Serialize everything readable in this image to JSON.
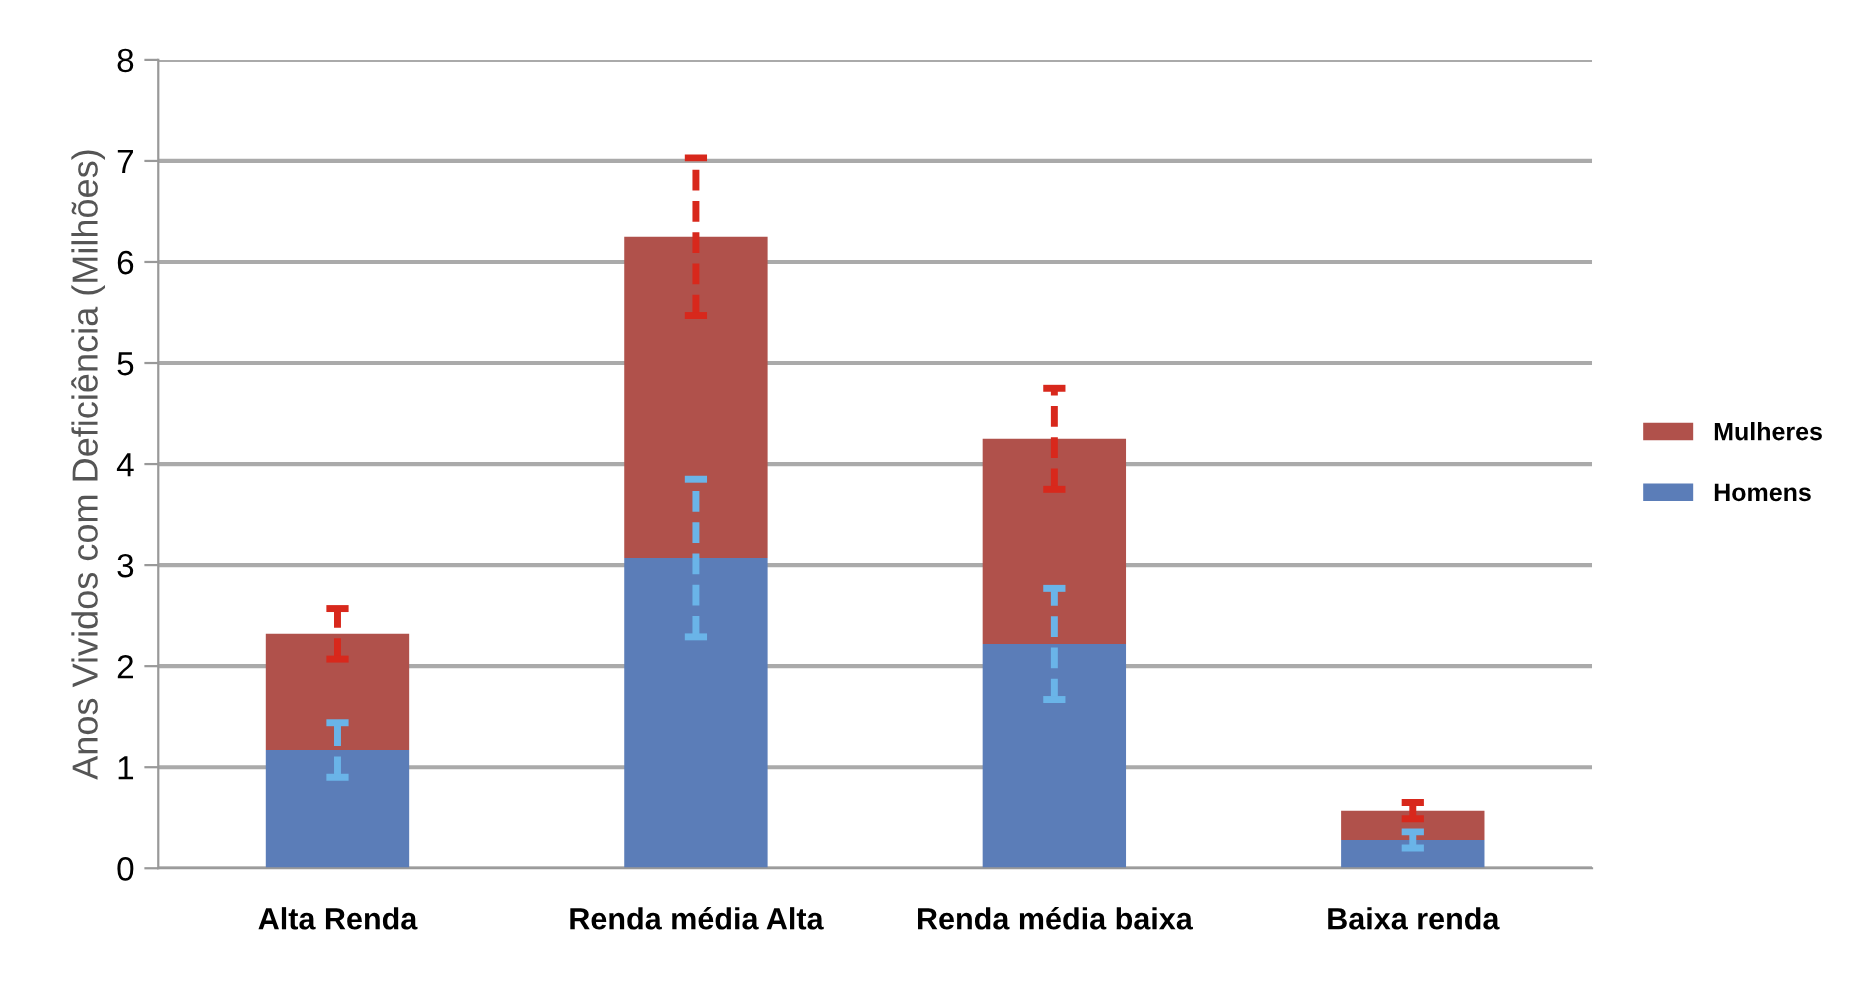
{
  "chart_data": {
    "type": "bar",
    "stacked": true,
    "ylabel": "Anos Vividos com Deficiência (Milhões)",
    "categories": [
      "Alta Renda",
      "Renda média Alta",
      "Renda média baixa",
      "Baixa renda"
    ],
    "series": [
      {
        "name": "Homens",
        "color": "#5b7db8",
        "values": [
          1.17,
          3.07,
          2.22,
          0.28
        ],
        "errors": [
          0.27,
          0.78,
          0.55,
          0.08
        ]
      },
      {
        "name": "Mulheres",
        "color": "#b0514b",
        "values": [
          1.15,
          3.18,
          2.03,
          0.29
        ],
        "errors": [
          0.25,
          0.78,
          0.5,
          0.08
        ]
      }
    ],
    "ylim": [
      0,
      8
    ],
    "yticks": [
      0,
      1,
      2,
      3,
      4,
      5,
      6,
      7,
      8
    ],
    "grid": "y",
    "legend": "right"
  }
}
